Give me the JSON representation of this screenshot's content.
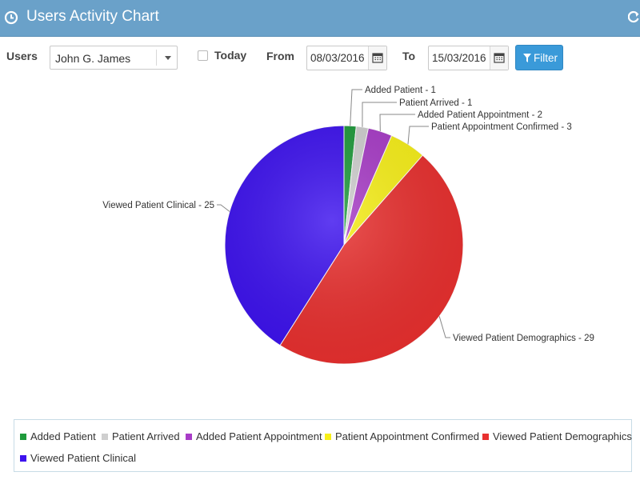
{
  "header": {
    "title": "Users Activity Chart",
    "icon": "clock-icon",
    "refresh_icon": "refresh-icon",
    "bg_color": "#6aa1c9"
  },
  "filters": {
    "users_label": "Users",
    "user_selected": "John G. James",
    "today_label": "Today",
    "today_checked": false,
    "from_label": "From",
    "from_date": "08/03/2016",
    "to_label": "To",
    "to_date": "15/03/2016",
    "filter_button": "Filter",
    "filter_button_color": "#3a9ad9"
  },
  "chart_data": {
    "type": "pie",
    "categories": [
      "Added Patient",
      "Patient Arrived",
      "Added Patient Appointment",
      "Patient Appointment Confirmed",
      "Viewed Patient Demographics",
      "Viewed Patient Clinical"
    ],
    "values": [
      1,
      1,
      2,
      3,
      29,
      25
    ],
    "colors": [
      "#1e9a3b",
      "#cfcfcf",
      "#a83cc7",
      "#f7ef18",
      "#e8302f",
      "#3d12ee"
    ],
    "data_labels": [
      "Added Patient - 1",
      "Patient Arrived - 1",
      "Added Patient Appointment - 2",
      "Patient Appointment Confirmed - 3",
      "Viewed Patient Demographics - 29",
      "Viewed Patient Clinical - 25"
    ],
    "legend_position": "bottom"
  }
}
